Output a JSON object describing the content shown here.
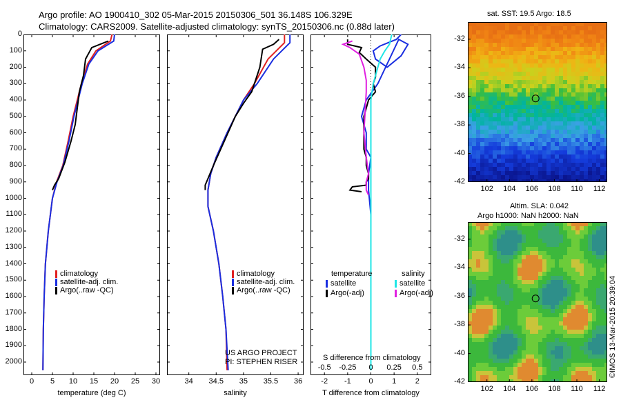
{
  "header": {
    "line1": "Argo profile: AO 1900410_302 05-Mar-2015 20150306_501 36.148S 106.329E",
    "line2": "Climatology: CARS2009. Satellite-adjusted climatology: synTS_20150306.nc (0.88d later)"
  },
  "colors": {
    "climatology": "#e02020",
    "satellite": "#1a2ee0",
    "argo": "#000000",
    "salinity_satellite": "#20e6e6",
    "salinity_argo": "#e020e0"
  },
  "chart_data": [
    {
      "type": "line",
      "id": "temperature",
      "xlabel": "temperature (deg C)",
      "xlim": [
        -2,
        31
      ],
      "xticks": [
        0,
        5,
        10,
        15,
        20,
        25,
        30
      ],
      "ylim": [
        2080,
        0
      ],
      "yticks": [
        0,
        100,
        200,
        300,
        400,
        500,
        600,
        700,
        800,
        900,
        1000,
        1100,
        1200,
        1300,
        1400,
        1500,
        1600,
        1700,
        1800,
        1900,
        2000
      ],
      "legend": [
        "climatology",
        "satellite-adj. clim.",
        "Argo(..raw -QC)"
      ],
      "series": [
        {
          "name": "climatology",
          "color": "#e02020",
          "x": [
            19.4,
            19.0,
            15.5,
            13.5,
            12.0,
            11.0,
            10.0,
            8.8,
            7.5,
            6.0,
            5.0,
            4.0,
            3.3,
            3.0,
            2.8,
            2.7
          ],
          "y": [
            0,
            40,
            100,
            180,
            300,
            400,
            500,
            650,
            800,
            900,
            1000,
            1200,
            1400,
            1600,
            1800,
            2050
          ]
        },
        {
          "name": "satellite-adj. clim.",
          "color": "#1a2ee0",
          "x": [
            20.0,
            19.8,
            16.0,
            13.8,
            12.2,
            11.2,
            10.2,
            9.0,
            7.6,
            6.1,
            5.0,
            4.0,
            3.3,
            3.0,
            2.8,
            2.7
          ],
          "y": [
            0,
            40,
            100,
            180,
            300,
            400,
            500,
            650,
            800,
            900,
            1000,
            1200,
            1400,
            1600,
            1800,
            2050
          ]
        },
        {
          "name": "Argo(..raw -QC)",
          "color": "#000000",
          "x": [
            18.5,
            17.0,
            14.5,
            13.0,
            12.5,
            11.5,
            11.0,
            10.5,
            9.5,
            8.0,
            6.5,
            5.5,
            5.0
          ],
          "y": [
            40,
            55,
            80,
            150,
            250,
            350,
            450,
            550,
            650,
            780,
            880,
            920,
            950
          ]
        }
      ]
    },
    {
      "type": "line",
      "id": "salinity",
      "xlabel": "salinity",
      "xlim": [
        33.6,
        36.1
      ],
      "xticks": [
        34,
        34.5,
        35,
        35.5,
        36
      ],
      "ylim": [
        2080,
        0
      ],
      "legend": [
        "climatology",
        "satellite-adj. clim.",
        "Argo(..raw -QC)"
      ],
      "annotations": [
        "US ARGO PROJECT",
        "PI: STEPHEN RISER"
      ],
      "series": [
        {
          "name": "climatology",
          "color": "#e02020",
          "x": [
            35.75,
            35.75,
            35.45,
            35.2,
            35.0,
            34.85,
            34.7,
            34.5,
            34.4,
            34.35,
            34.35,
            34.45,
            34.55,
            34.62,
            34.68,
            34.7
          ],
          "y": [
            0,
            50,
            150,
            300,
            400,
            500,
            600,
            750,
            850,
            950,
            1050,
            1200,
            1400,
            1600,
            1800,
            2050
          ]
        },
        {
          "name": "satellite-adj. clim.",
          "color": "#1a2ee0",
          "x": [
            35.85,
            35.85,
            35.55,
            35.25,
            35.0,
            34.85,
            34.7,
            34.5,
            34.4,
            34.35,
            34.35,
            34.45,
            34.55,
            34.62,
            34.68,
            34.72
          ],
          "y": [
            0,
            50,
            150,
            300,
            400,
            500,
            600,
            750,
            850,
            950,
            1050,
            1200,
            1400,
            1600,
            1800,
            2050
          ]
        },
        {
          "name": "Argo(..raw -QC)",
          "color": "#000000",
          "x": [
            35.65,
            35.55,
            35.35,
            35.3,
            35.15,
            35.0,
            34.85,
            34.65,
            34.45,
            34.35,
            34.3,
            34.3
          ],
          "y": [
            30,
            60,
            90,
            200,
            350,
            420,
            500,
            650,
            800,
            880,
            920,
            950
          ]
        }
      ]
    },
    {
      "type": "line",
      "id": "difference",
      "xlabel": "T difference from climatology",
      "xlabel_top": "S difference from climatology",
      "xlim": [
        -2.6,
        2.6
      ],
      "xticks": [
        -2,
        -1,
        0,
        1,
        2
      ],
      "xticks_top": [
        -0.5,
        -0.25,
        0,
        0.25,
        0.5
      ],
      "ylim": [
        2080,
        0
      ],
      "legend_titles": [
        "temperature",
        "salinity"
      ],
      "legend": [
        "satellite",
        "Argo(-adj)",
        "satellite",
        "Argo(-adj)"
      ],
      "series": [
        {
          "name": "satellite",
          "color": "#1a2ee0",
          "x": [
            1.3,
            1.1,
            0.4,
            0.1,
            0.2,
            0.7,
            1.3,
            1.6,
            1.2,
            0.3,
            -0.2,
            -0.4,
            -0.2,
            -0.2,
            0.0,
            -0.1,
            -0.1,
            0.0,
            0.0,
            0.0,
            0.0,
            0.0
          ],
          "y": [
            0,
            30,
            70,
            100,
            150,
            200,
            130,
            60,
            30,
            300,
            400,
            500,
            600,
            700,
            750,
            850,
            950,
            1100,
            1300,
            1500,
            1800,
            2050
          ]
        },
        {
          "name": "Argo(-adj)",
          "color": "#000000",
          "x": [
            -1.0,
            -1.0,
            -0.4,
            -0.5,
            -0.2,
            0.2,
            0.2,
            0.1,
            0.2,
            -0.1,
            -0.2,
            -0.3,
            -0.3,
            -0.3,
            -0.3,
            -0.3,
            -0.2,
            -0.2,
            -0.1,
            -0.1,
            -0.2,
            -0.2,
            -0.8,
            -0.9,
            -0.4
          ],
          "y": [
            30,
            60,
            80,
            110,
            150,
            200,
            260,
            300,
            350,
            400,
            450,
            500,
            550,
            600,
            650,
            700,
            750,
            800,
            850,
            880,
            900,
            920,
            930,
            950,
            960
          ]
        },
        {
          "name": "salinity satellite",
          "color": "#20e6e6",
          "x": [
            0.9,
            0.8,
            0.6,
            0.4,
            0.3,
            0.1,
            0.0,
            0.0,
            0.0,
            0.0,
            0.0
          ],
          "y": [
            0,
            60,
            100,
            150,
            200,
            300,
            400,
            600,
            900,
            1300,
            2050
          ]
        },
        {
          "name": "salinity Argo(-adj)",
          "color": "#e020e0",
          "x": [
            -0.8,
            -1.2,
            -0.9,
            -0.5,
            -0.3,
            -0.2,
            -0.2,
            -0.3,
            -0.2,
            -0.1,
            -0.2,
            -0.2,
            -0.1
          ],
          "y": [
            40,
            60,
            80,
            120,
            200,
            280,
            350,
            600,
            750,
            850,
            900,
            950,
            980
          ]
        }
      ]
    },
    {
      "type": "heatmap",
      "id": "sst-map",
      "title": "sat. SST: 19.5 Argo: 18.5",
      "xlim": [
        100.3,
        112.7
      ],
      "ylim": [
        -42,
        -30.8
      ],
      "xticks": [
        102,
        104,
        106,
        108,
        110,
        112
      ],
      "yticks": [
        -32,
        -34,
        -36,
        -38,
        -40,
        -42
      ],
      "marker": {
        "lon": 106.329,
        "lat": -36.148
      }
    },
    {
      "type": "heatmap",
      "id": "sla-map",
      "title_line1": "Altim. SLA: 0.042",
      "title_line2": "Argo h1000: NaN h2000: NaN",
      "xlim": [
        100.3,
        112.7
      ],
      "ylim": [
        -42,
        -30.8
      ],
      "xticks": [
        102,
        104,
        106,
        108,
        110,
        112
      ],
      "yticks": [
        -32,
        -34,
        -36,
        -38,
        -40,
        -42
      ],
      "marker": {
        "lon": 106.329,
        "lat": -36.148
      }
    }
  ],
  "side_stamp": "©IMOS 13-Mar-2015 20:39:04"
}
